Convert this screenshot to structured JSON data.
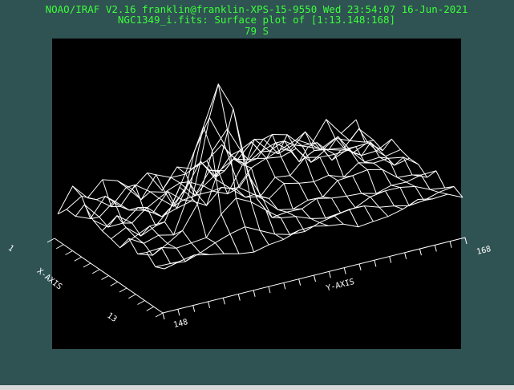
{
  "header": {
    "line1": "NOAO/IRAF V2.16 franklin@franklin-XPS-15-9550 Wed 23:54:07 16-Jun-2021",
    "line2": "NGC1349_i.fits: Surface plot of [1:13.148:168]",
    "line3": "79 S"
  },
  "plot": {
    "x_axis_label": "X-AXIS",
    "y_axis_label": "Y-AXIS",
    "x_range_labels": [
      "1",
      "13"
    ],
    "y_range_labels": [
      "148",
      "168"
    ]
  }
}
